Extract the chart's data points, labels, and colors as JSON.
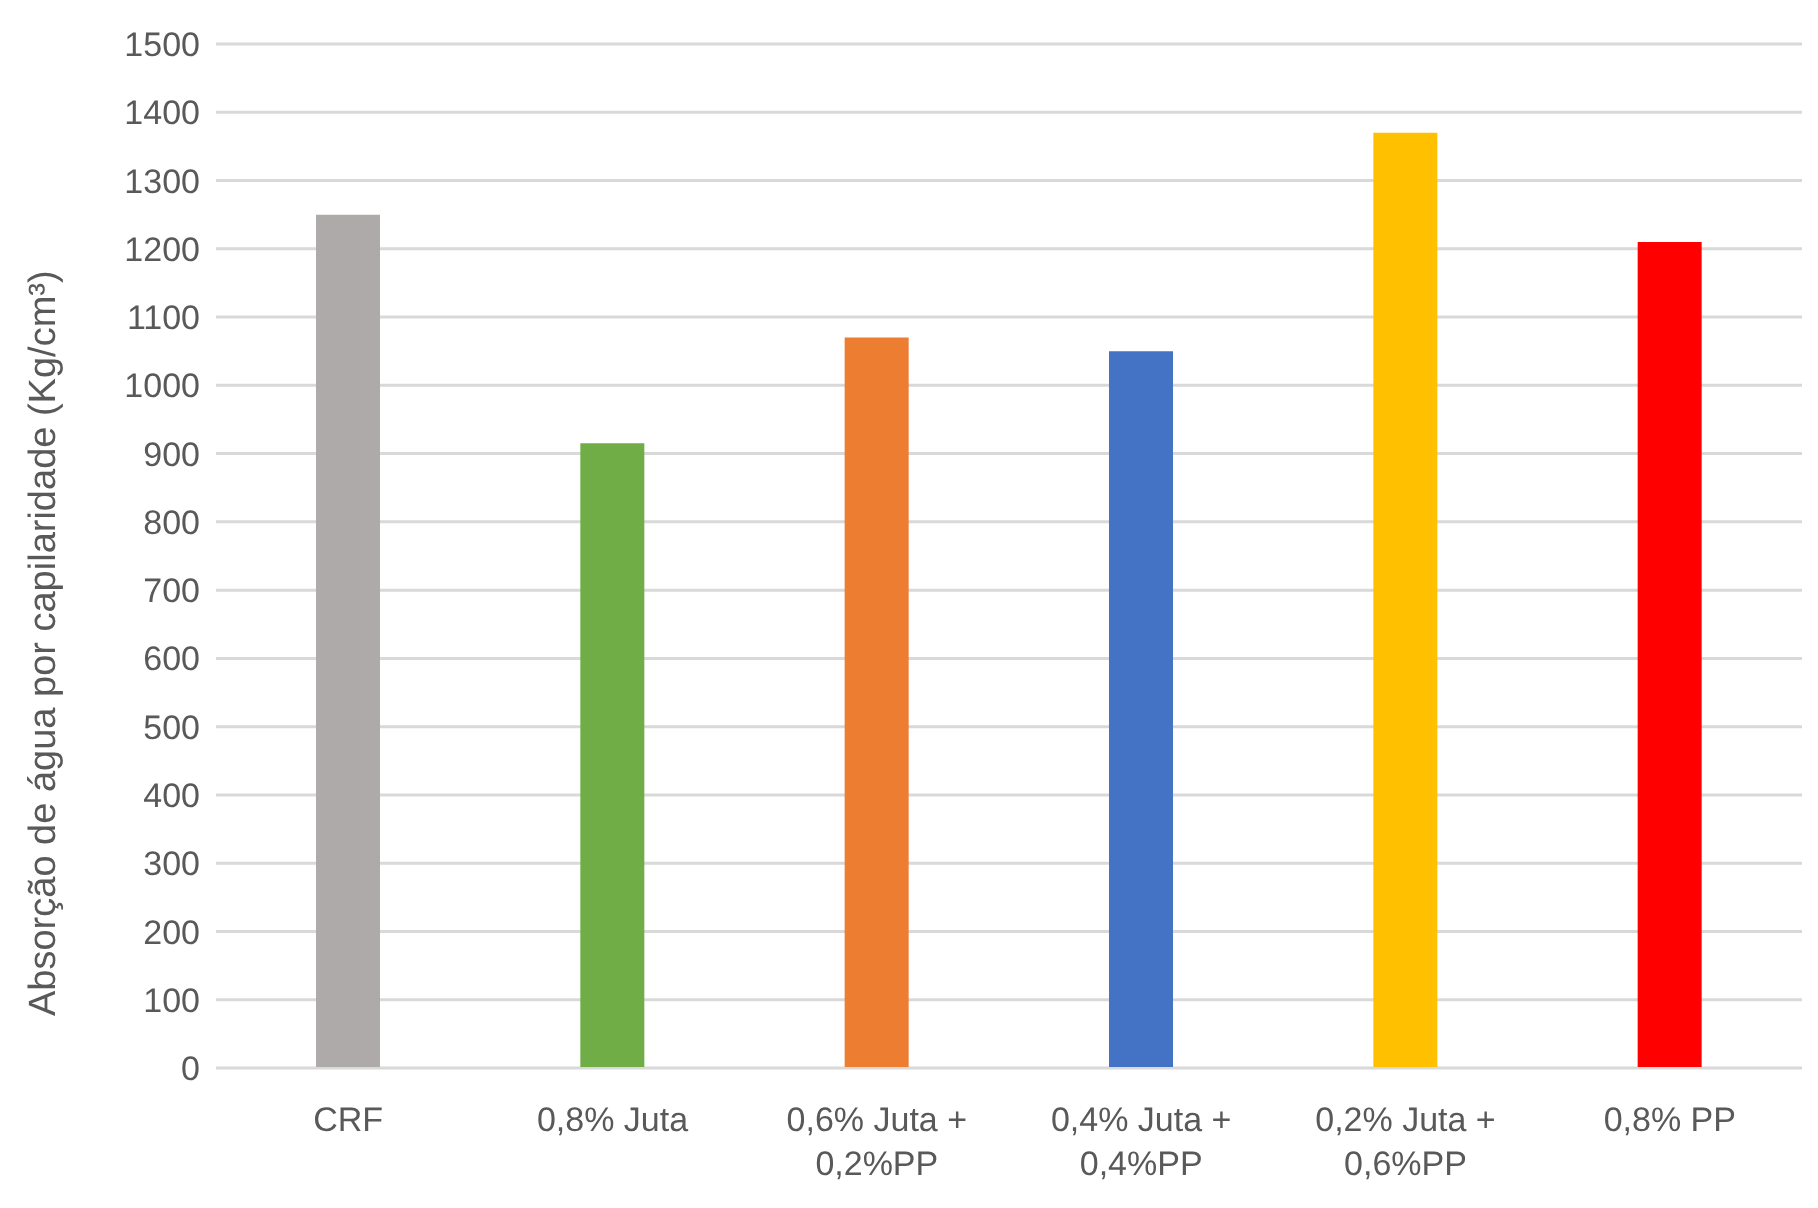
{
  "chart_data": {
    "type": "bar",
    "ylabel": "Absorção de água por capilaridade (Kg/cm³)",
    "categories": [
      "CRF",
      "0,8% Juta",
      "0,6% Juta + 0,2%PP",
      "0,4% Juta + 0,4%PP",
      "0,2% Juta + 0,6%PP",
      "0,8% PP"
    ],
    "values": [
      1250,
      915,
      1070,
      1050,
      1370,
      1210
    ],
    "colors": [
      "#aeaaaa",
      "#70ad47",
      "#ed7d31",
      "#4472c4",
      "#ffc000",
      "#ff0000"
    ],
    "ylim": [
      0,
      1500
    ],
    "yticks": [
      0,
      100,
      200,
      300,
      400,
      500,
      600,
      700,
      800,
      900,
      1000,
      1100,
      1200,
      1300,
      1400,
      1500
    ],
    "grid": "y"
  }
}
